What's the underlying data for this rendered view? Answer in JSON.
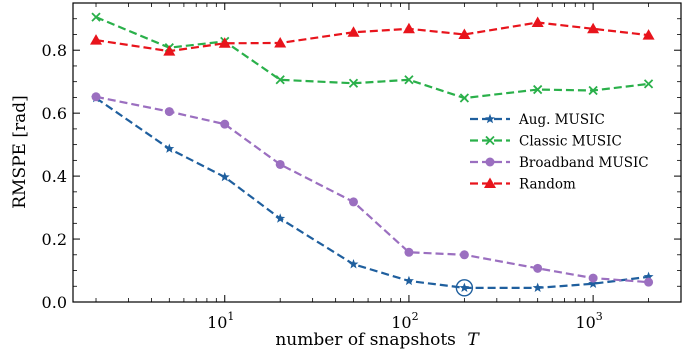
{
  "chart_data": {
    "type": "line",
    "xlabel": "number of snapshots",
    "xlabel_var": "T",
    "ylabel": "RMSPE [rad]",
    "xscale": "log",
    "xlim": [
      1.5,
      3000
    ],
    "ylim": [
      0,
      0.95
    ],
    "x_ticks": [
      {
        "value": 10,
        "base": "10",
        "exp": "1"
      },
      {
        "value": 100,
        "base": "10",
        "exp": "2"
      },
      {
        "value": 1000,
        "base": "10",
        "exp": "3"
      }
    ],
    "y_ticks": [
      {
        "value": 0.0,
        "label": "0.0"
      },
      {
        "value": 0.2,
        "label": "0.2"
      },
      {
        "value": 0.4,
        "label": "0.4"
      },
      {
        "value": 0.6,
        "label": "0.6"
      },
      {
        "value": 0.8,
        "label": "0.8"
      }
    ],
    "grid": false,
    "legend_position": "center-right",
    "x": [
      2,
      5,
      10,
      20,
      50,
      100,
      200,
      500,
      1000,
      2000
    ],
    "series": [
      {
        "name": "Aug. MUSIC",
        "color": "#1f5f9e",
        "marker": "star",
        "values": [
          0.648,
          0.487,
          0.397,
          0.265,
          0.12,
          0.067,
          0.045,
          0.045,
          0.058,
          0.08
        ]
      },
      {
        "name": "Classic MUSIC",
        "color": "#2ab04a",
        "marker": "x",
        "values": [
          0.905,
          0.808,
          0.828,
          0.706,
          0.695,
          0.706,
          0.648,
          0.675,
          0.672,
          0.693
        ]
      },
      {
        "name": "Broadband MUSIC",
        "color": "#9b6fc0",
        "marker": "circle",
        "values": [
          0.652,
          0.605,
          0.565,
          0.437,
          0.318,
          0.158,
          0.15,
          0.107,
          0.076,
          0.063
        ]
      },
      {
        "name": "Random",
        "color": "#e8141c",
        "marker": "triangle",
        "values": [
          0.832,
          0.797,
          0.822,
          0.823,
          0.857,
          0.868,
          0.85,
          0.888,
          0.868,
          0.848
        ]
      }
    ],
    "annotations": [
      {
        "type": "circle-highlight",
        "series": "Aug. MUSIC",
        "x": 200,
        "y": 0.045
      }
    ]
  }
}
